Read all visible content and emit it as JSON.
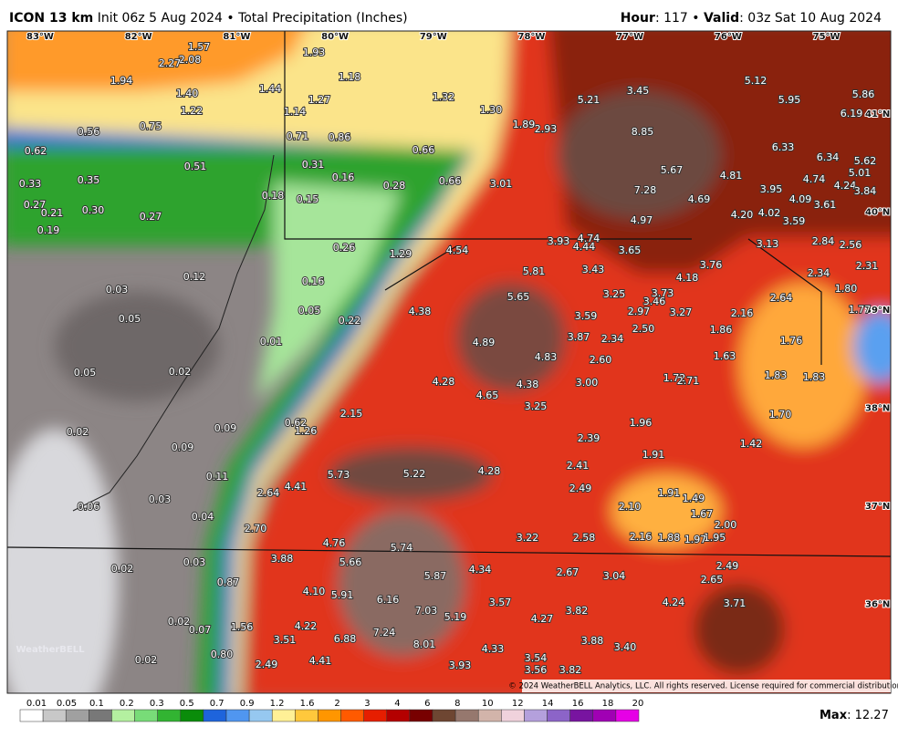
{
  "header": {
    "model": "ICON 13 km",
    "subtitle": "Init 06z 5 Aug 2024 • Total Precipitation (Inches)",
    "hour_label": "Hour",
    "hour_value": ": 117 • ",
    "valid_label": "Valid",
    "valid_value": ": 03z Sat 10 Aug 2024"
  },
  "longitudes": [
    "83°W",
    "82°W",
    "81°W",
    "80°W",
    "79°W",
    "78°W",
    "77°W",
    "76°W",
    "75°W"
  ],
  "latitudes": [
    "41°N",
    "40°N",
    "39°N",
    "38°N",
    "37°N",
    "36°N"
  ],
  "values": [
    "1.57",
    "2.08",
    "2.27",
    "1.94",
    "1.40",
    "1.44",
    "1.93",
    "1.18",
    "1.27",
    "1.14",
    "1.22",
    "1.32",
    "1.30",
    "0.75",
    "0.56",
    "0.71",
    "0.86",
    "0.62",
    "0.51",
    "0.31",
    "0.16",
    "0.66",
    "0.66",
    "0.28",
    "0.33",
    "0.35",
    "0.18",
    "0.15",
    "0.27",
    "0.21",
    "0.30",
    "0.27",
    "0.19",
    "0.26",
    "1.29",
    "4.54",
    "0.12",
    "0.03",
    "0.16",
    "0.05",
    "0.05",
    "0.22",
    "0.01",
    "0.05",
    "0.02",
    "4.38",
    "4.89",
    "4.28",
    "4.65",
    "4.38",
    "4.83",
    "3.25",
    "5.65",
    "5.81",
    "3.93",
    "4.74",
    "4.44",
    "3.65",
    "3.43",
    "3.25",
    "3.59",
    "2.97",
    "3.46",
    "3.73",
    "4.18",
    "3.76",
    "3.27",
    "2.16",
    "1.86",
    "1.63",
    "2.50",
    "2.34",
    "3.87",
    "2.60",
    "3.00",
    "1.72",
    "2.71",
    "1.96",
    "2.39",
    "1.91",
    "2.41",
    "2.49",
    "1.91",
    "1.49",
    "1.67",
    "2.10",
    "2.00",
    "1.95",
    "1.97",
    "1.88",
    "2.16",
    "2.58",
    "3.22",
    "2.49",
    "2.65",
    "3.04",
    "2.67",
    "4.34",
    "5.87",
    "3.57",
    "3.82",
    "4.24",
    "3.71",
    "4.27",
    "3.88",
    "3.40",
    "4.33",
    "3.54",
    "3.56",
    "3.82",
    "3.93",
    "8.01",
    "7.24",
    "7.03",
    "5.19",
    "6.16",
    "5.91",
    "5.66",
    "5.74",
    "4.10",
    "4.22",
    "3.51",
    "6.88",
    "4.41",
    "2.49",
    "3.88",
    "4.76",
    "2.70",
    "2.64",
    "4.41",
    "5.73",
    "5.22",
    "4.28",
    "2.15",
    "1.26",
    "0.62",
    "0.09",
    "0.09",
    "0.02",
    "0.11",
    "0.06",
    "0.03",
    "0.04",
    "0.03",
    "0.02",
    "0.87",
    "0.07",
    "0.02",
    "1.56",
    "0.80",
    "0.02",
    "5.21",
    "3.45",
    "5.12",
    "5.95",
    "5.86",
    "6.19",
    "8.85",
    "1.89",
    "2.93",
    "3.01",
    "5.67",
    "4.81",
    "7.28",
    "4.69",
    "6.33",
    "6.34",
    "5.62",
    "5.01",
    "4.74",
    "4.24",
    "3.84",
    "3.95",
    "4.09",
    "3.61",
    "4.20",
    "4.02",
    "3.59",
    "4.97",
    "3.13",
    "2.84",
    "2.56",
    "2.34",
    "2.31",
    "1.80",
    "2.64",
    "1.77",
    "1.76",
    "1.83",
    "1.83",
    "1.70",
    "1.42"
  ],
  "copyright": "© 2024 WeatherBELL Analytics, LLC. All rights reserved. License required for commercial distribution.",
  "logo": "WeatherBELL",
  "legend": {
    "labels": [
      "0.01",
      "0.05",
      "0.1",
      "0.2",
      "0.3",
      "0.5",
      "0.7",
      "0.9",
      "1.2",
      "1.6",
      "2",
      "3",
      "4",
      "6",
      "8",
      "10",
      "12",
      "14",
      "16",
      "18",
      "20"
    ],
    "colors": [
      "#ffffff",
      "#c8c8c8",
      "#a0a0a0",
      "#787878",
      "#b4f0a0",
      "#78dc78",
      "#32b432",
      "#0a8c0a",
      "#1e64dc",
      "#5096f0",
      "#96c8f0",
      "#fff096",
      "#ffc83c",
      "#ff9600",
      "#ff5a00",
      "#e61e00",
      "#b40000",
      "#780000",
      "#6e4632",
      "#96786e",
      "#d2b4aa",
      "#f0d2dc",
      "#b4a0dc",
      "#8c64c8",
      "#7814a0",
      "#a000b4",
      "#e600e6"
    ]
  },
  "max": {
    "label": "Max",
    "value": ": 12.27"
  }
}
